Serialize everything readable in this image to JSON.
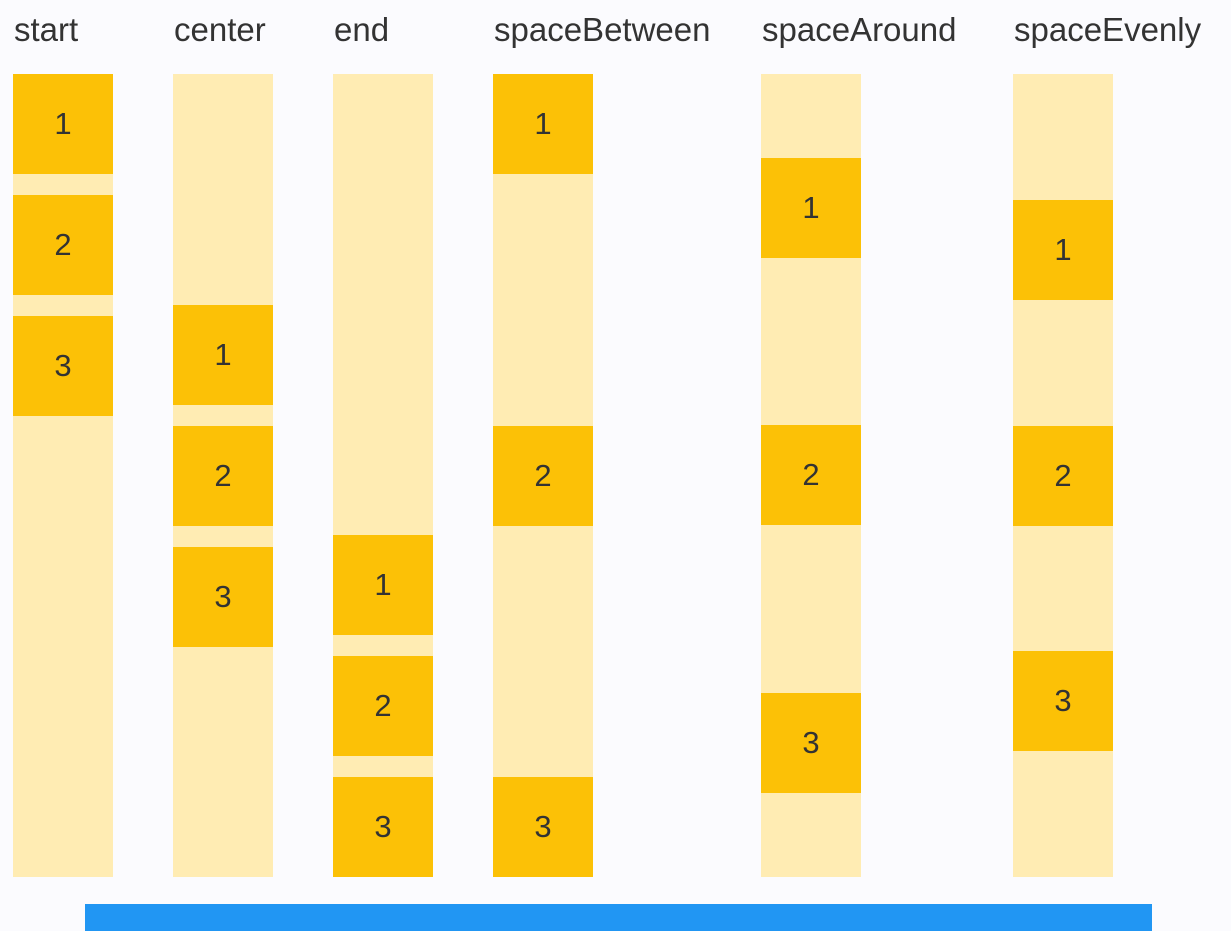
{
  "demo": {
    "title": "",
    "box_size": "100x100",
    "item_count_per_column": 3
  },
  "columns": [
    {
      "label": "start",
      "justify": "flex-start",
      "items": [
        "1",
        "2",
        "3"
      ]
    },
    {
      "label": "center",
      "justify": "center",
      "items": [
        "1",
        "2",
        "3"
      ]
    },
    {
      "label": "end",
      "justify": "flex-end",
      "items": [
        "1",
        "2",
        "3"
      ]
    },
    {
      "label": "spaceBetween",
      "justify": "space-between",
      "items": [
        "1",
        "2",
        "3"
      ]
    },
    {
      "label": "spaceAround",
      "justify": "space-around",
      "items": [
        "1",
        "2",
        "3"
      ]
    },
    {
      "label": "spaceEvenly",
      "justify": "space-evenly",
      "items": [
        "1",
        "2",
        "3"
      ]
    }
  ],
  "colors": {
    "box": "#FCC106",
    "track": "#FFECB3",
    "text": "#333333",
    "progress_bar": "#2196F3",
    "background": "#FBFBFE"
  }
}
